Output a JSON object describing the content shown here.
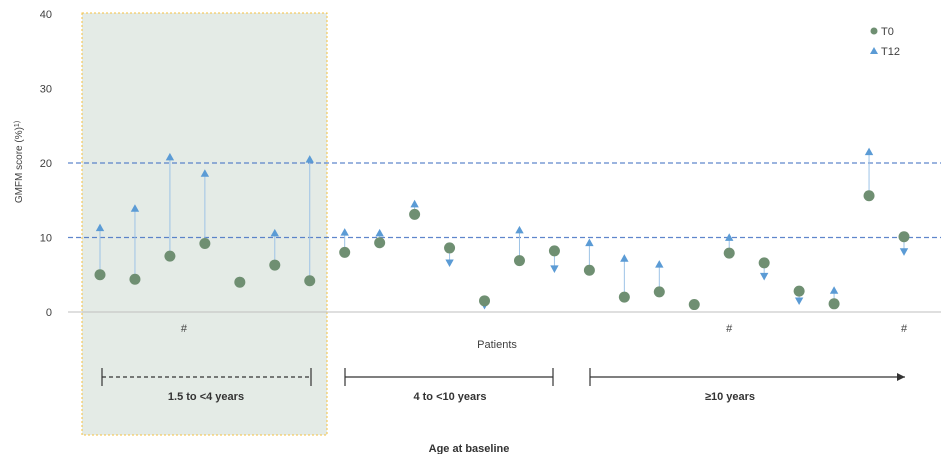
{
  "chart_data": {
    "type": "scatter",
    "ylabel": "GMFM score (%)",
    "ylabel_sup": "1)",
    "xlabel": "Patients",
    "age_label": "Age at baseline",
    "ylim": [
      0,
      40
    ],
    "yticks": [
      "0",
      "10",
      "20",
      "30",
      "40"
    ],
    "reference_lines": [
      10,
      20
    ],
    "colors": {
      "t0": "#6f8f72",
      "t12": "#5b9bd5",
      "connector": "#9dc3e6",
      "ref_line": "#4472c4",
      "highlight_fill": "#e4ebe6",
      "highlight_border": "#f5c242"
    },
    "legend": {
      "placement": "top-right",
      "items": [
        {
          "label": "T0",
          "marker": "circle"
        },
        {
          "label": "T12",
          "marker": "triangle"
        }
      ]
    },
    "series": [
      {
        "name": "T0",
        "values": [
          5.0,
          4.4,
          7.5,
          9.2,
          4.0,
          6.3,
          4.2,
          8.0,
          9.3,
          13.1,
          8.6,
          1.5,
          6.9,
          8.2,
          5.6,
          2.0,
          2.7,
          1.0,
          7.9,
          6.6,
          2.8,
          1.1,
          15.6,
          10.1
        ]
      },
      {
        "name": "T12",
        "values": [
          11.3,
          13.9,
          20.8,
          18.6,
          4.2,
          10.6,
          20.5,
          10.7,
          10.6,
          14.5,
          6.6,
          0.9,
          11.0,
          5.8,
          9.3,
          7.2,
          6.4,
          0.9,
          10.0,
          4.8,
          1.5,
          2.9,
          21.5,
          8.1
        ]
      }
    ],
    "markers": [
      {
        "index": 2,
        "text": "#"
      },
      {
        "index": 18,
        "text": "#"
      },
      {
        "index": 23,
        "text": "#"
      }
    ],
    "age_groups": [
      {
        "label": "1.5 to <4 years",
        "start": 0,
        "end": 6,
        "style": "dashed",
        "highlighted": true
      },
      {
        "label": "4 to <10 years",
        "start": 7,
        "end": 13,
        "style": "solid"
      },
      {
        "label": "≥10 years",
        "start": 14,
        "end": 23,
        "style": "arrow"
      }
    ]
  }
}
